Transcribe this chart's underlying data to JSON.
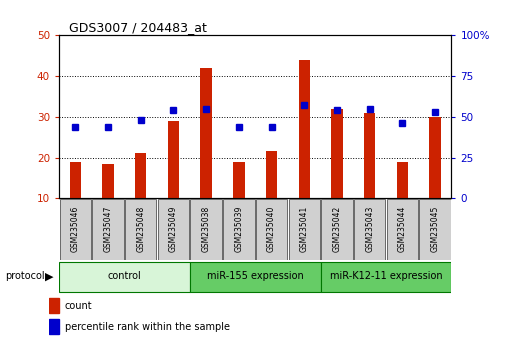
{
  "title": "GDS3007 / 204483_at",
  "samples": [
    "GSM235046",
    "GSM235047",
    "GSM235048",
    "GSM235049",
    "GSM235038",
    "GSM235039",
    "GSM235040",
    "GSM235041",
    "GSM235042",
    "GSM235043",
    "GSM235044",
    "GSM235045"
  ],
  "counts": [
    19,
    18.5,
    21,
    29,
    42,
    19,
    21.5,
    44,
    32,
    31,
    19,
    30
  ],
  "percentile_ranks": [
    44,
    44,
    48,
    54,
    55,
    44,
    44,
    57,
    54,
    55,
    46,
    53
  ],
  "groups": [
    {
      "label": "control",
      "start": 0,
      "end": 4,
      "color": "#d8f5d8"
    },
    {
      "label": "miR-155 expression",
      "start": 4,
      "end": 8,
      "color": "#66cc66"
    },
    {
      "label": "miR-K12-11 expression",
      "start": 8,
      "end": 12,
      "color": "#66cc66"
    }
  ],
  "group_border_color": "#007700",
  "ylim_left": [
    10,
    50
  ],
  "ylim_right": [
    0,
    100
  ],
  "yticks_left": [
    10,
    20,
    30,
    40,
    50
  ],
  "yticks_right": [
    0,
    25,
    50,
    75,
    100
  ],
  "bar_color": "#cc2200",
  "dot_color": "#0000cc",
  "bar_width": 0.35,
  "bar_bottom": 10
}
